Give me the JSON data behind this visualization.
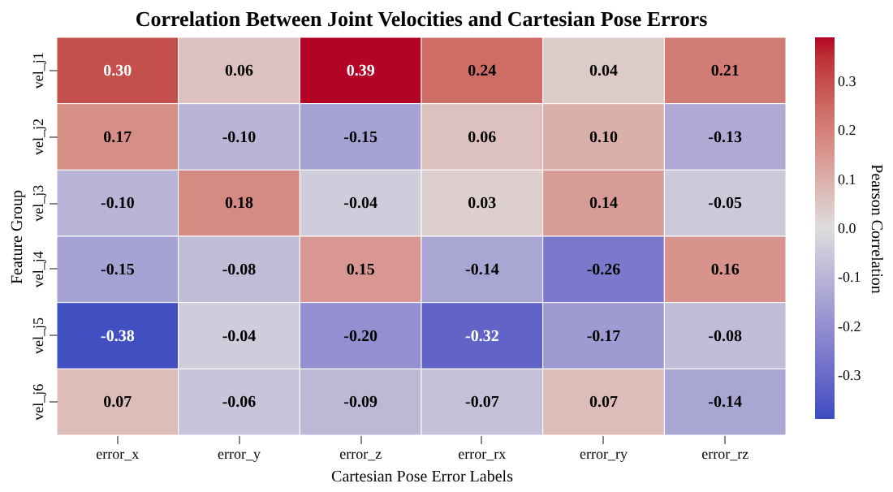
{
  "chart_data": {
    "type": "heatmap",
    "title": "Correlation Between Joint Velocities and Cartesian Pose Errors",
    "xlabel": "Cartesian Pose Error Labels",
    "ylabel": "Feature Group",
    "clabel": "Pearson Correlation",
    "categories": [
      "error_x",
      "error_y",
      "error_z",
      "error_rx",
      "error_ry",
      "error_rz"
    ],
    "y_categories": [
      "vel_j1",
      "vel_j2",
      "vel_j3",
      "vel_j4",
      "vel_j5",
      "vel_j6"
    ],
    "cells": [
      [
        0.3,
        0.06,
        0.39,
        0.24,
        0.04,
        0.21
      ],
      [
        0.17,
        -0.1,
        -0.15,
        0.06,
        0.1,
        -0.13
      ],
      [
        -0.1,
        0.18,
        -0.04,
        0.03,
        0.14,
        -0.05
      ],
      [
        -0.15,
        -0.08,
        0.15,
        -0.14,
        -0.26,
        0.16
      ],
      [
        -0.38,
        -0.04,
        -0.2,
        -0.32,
        -0.17,
        -0.08
      ],
      [
        0.07,
        -0.06,
        -0.09,
        -0.07,
        0.07,
        -0.14
      ]
    ],
    "cell_labels": [
      [
        "0.30",
        "0.06",
        "0.39",
        "0.24",
        "0.04",
        "0.21"
      ],
      [
        "0.17",
        "-0.10",
        "-0.15",
        "0.06",
        "0.10",
        "-0.13"
      ],
      [
        "-0.10",
        "0.18",
        "-0.04",
        "0.03",
        "0.14",
        "-0.05"
      ],
      [
        "-0.15",
        "-0.08",
        "0.15",
        "-0.14",
        "-0.26",
        "0.16"
      ],
      [
        "-0.38",
        "-0.04",
        "-0.20",
        "-0.32",
        "-0.17",
        "-0.08"
      ],
      [
        "0.07",
        "-0.06",
        "-0.09",
        "-0.07",
        "0.07",
        "-0.14"
      ]
    ],
    "clim": [
      -0.39,
      0.39
    ],
    "cticks": [
      -0.3,
      -0.2,
      -0.1,
      {
        "value": 0,
        "label": "0.0"
      },
      0.1,
      0.2,
      0.3
    ]
  }
}
